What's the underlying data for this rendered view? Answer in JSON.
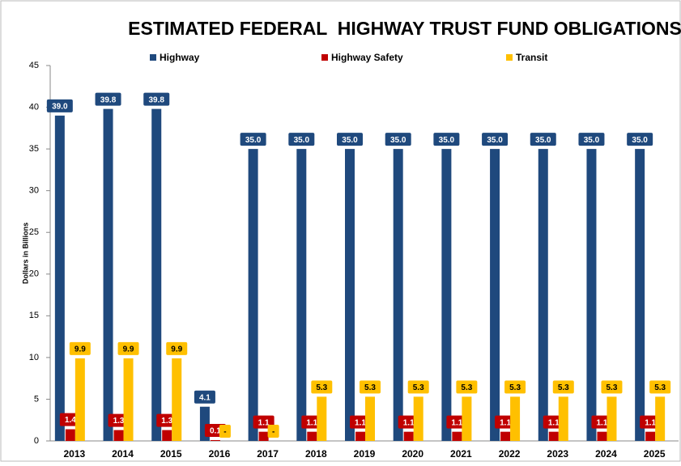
{
  "chart_data": {
    "type": "bar",
    "title": "ESTIMATED FEDERAL  HIGHWAY TRUST FUND OBLIGATIONS",
    "y_label": "Dollars in Billions",
    "categories": [
      "2013",
      "2014",
      "2015",
      "2016",
      "2017",
      "2018",
      "2019",
      "2020",
      "2021",
      "2022",
      "2023",
      "2024",
      "2025"
    ],
    "series": [
      {
        "name": "Highway",
        "color": "#1f497d",
        "values": [
          39.0,
          39.8,
          39.8,
          4.1,
          35.0,
          35.0,
          35.0,
          35.0,
          35.0,
          35.0,
          35.0,
          35.0,
          35.0
        ],
        "value_labels": [
          "39.0",
          "39.8",
          "39.8",
          "4.1",
          "35.0",
          "35.0",
          "35.0",
          "35.0",
          "35.0",
          "35.0",
          "35.0",
          "35.0",
          "35.0"
        ]
      },
      {
        "name": "Highway Safety",
        "color": "#c00000",
        "values": [
          1.4,
          1.3,
          1.3,
          0.1,
          1.1,
          1.1,
          1.1,
          1.1,
          1.1,
          1.1,
          1.1,
          1.1,
          1.1
        ],
        "value_labels": [
          "1.4",
          "1.3",
          "1.3",
          "0.1",
          "1.1",
          "1.1",
          "1.1",
          "1.1",
          "1.1",
          "1.1",
          "1.1",
          "1.1",
          "1.1"
        ]
      },
      {
        "name": "Transit",
        "color": "#ffc000",
        "values": [
          9.9,
          9.9,
          9.9,
          0,
          0,
          5.3,
          5.3,
          5.3,
          5.3,
          5.3,
          5.3,
          5.3,
          5.3
        ],
        "value_labels": [
          "9.9",
          "9.9",
          "9.9",
          "-",
          "-",
          "5.3",
          "5.3",
          "5.3",
          "5.3",
          "5.3",
          "5.3",
          "5.3",
          "5.3"
        ]
      }
    ],
    "ylim": [
      0,
      45
    ],
    "yticks": [
      0,
      5,
      10,
      15,
      20,
      25,
      30,
      35,
      40,
      45
    ],
    "grid": false,
    "legend": "top"
  }
}
